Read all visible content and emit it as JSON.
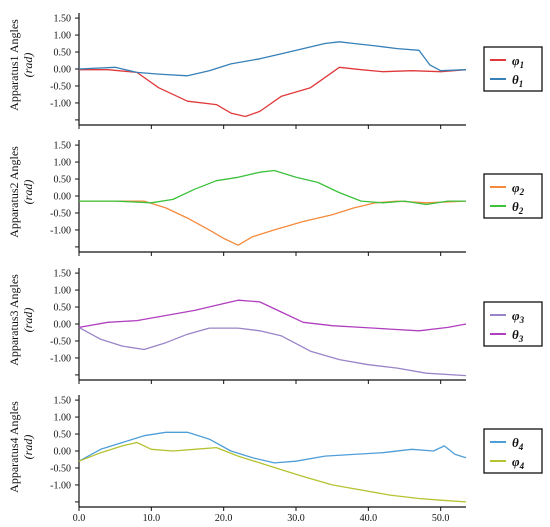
{
  "chart_data": {
    "type": "line",
    "xlim": [
      0,
      53.5
    ],
    "x_ticks": [
      "0.0",
      "10.0",
      "20.0",
      "30.0",
      "40.0",
      "50.0"
    ],
    "y_ticks": [
      "1.50",
      "1.00",
      "0.50",
      "0.00",
      "-0.50",
      "-1.00"
    ],
    "ylim": [
      -1.65,
      1.65
    ],
    "grid": false,
    "legend_placement": "right",
    "panels": [
      {
        "ylabel": "Apparatus1 Angles",
        "yunit": "(rad)",
        "series": [
          {
            "name": "φ1",
            "legend_symbol": "φ",
            "legend_sub": "1",
            "color": "#e0393b",
            "x": [
              0,
              4,
              8,
              11,
              15,
              19,
              21,
              23,
              25,
              28,
              32,
              36,
              39,
              42,
              46,
              50,
              53.5
            ],
            "y": [
              -0.02,
              -0.02,
              -0.1,
              -0.55,
              -0.95,
              -1.05,
              -1.3,
              -1.4,
              -1.25,
              -0.8,
              -0.55,
              0.05,
              -0.02,
              -0.08,
              -0.05,
              -0.08,
              -0.02
            ]
          },
          {
            "name": "θ1",
            "legend_symbol": "θ",
            "legend_sub": "1",
            "color": "#3680b8",
            "x": [
              0,
              5,
              8,
              11,
              15,
              18,
              21,
              25,
              28,
              31,
              34,
              36,
              38,
              41,
              44,
              47,
              48.5,
              50,
              53.5
            ],
            "y": [
              0.0,
              0.05,
              -0.1,
              -0.15,
              -0.2,
              -0.05,
              0.15,
              0.3,
              0.45,
              0.6,
              0.75,
              0.8,
              0.75,
              0.68,
              0.6,
              0.55,
              0.12,
              -0.05,
              -0.02
            ]
          }
        ]
      },
      {
        "ylabel": "Apparatus2 Angles",
        "yunit": "(rad)",
        "series": [
          {
            "name": "φ2",
            "legend_symbol": "φ",
            "legend_sub": "2",
            "color": "#f58a3c",
            "x": [
              0,
              5,
              9,
              12,
              15,
              18,
              20,
              22,
              24,
              27,
              31,
              35,
              38,
              41,
              44,
              48,
              53.5
            ],
            "y": [
              -0.15,
              -0.15,
              -0.15,
              -0.35,
              -0.65,
              -1.0,
              -1.25,
              -1.45,
              -1.2,
              -1.0,
              -0.75,
              -0.55,
              -0.35,
              -0.2,
              -0.15,
              -0.2,
              -0.15
            ]
          },
          {
            "name": "θ2",
            "legend_symbol": "θ",
            "legend_sub": "2",
            "color": "#3cc13c",
            "x": [
              0,
              5,
              10,
              13,
              16,
              19,
              22,
              25,
              27,
              30,
              33,
              36,
              39,
              42,
              45,
              48,
              51,
              53.5
            ],
            "y": [
              -0.15,
              -0.15,
              -0.2,
              -0.1,
              0.2,
              0.45,
              0.55,
              0.7,
              0.75,
              0.55,
              0.4,
              0.1,
              -0.15,
              -0.2,
              -0.15,
              -0.25,
              -0.15,
              -0.15
            ]
          }
        ]
      },
      {
        "ylabel": "Apparatus3 Angles",
        "yunit": "(rad)",
        "series": [
          {
            "name": "φ3",
            "legend_symbol": "φ",
            "legend_sub": "3",
            "color": "#9a84c9",
            "x": [
              0,
              3,
              6,
              9,
              12,
              15,
              18,
              22,
              25,
              28,
              32,
              36,
              40,
              44,
              48,
              53.5
            ],
            "y": [
              -0.1,
              -0.45,
              -0.65,
              -0.75,
              -0.55,
              -0.3,
              -0.12,
              -0.12,
              -0.2,
              -0.35,
              -0.8,
              -1.05,
              -1.2,
              -1.3,
              -1.45,
              -1.52
            ]
          },
          {
            "name": "θ3",
            "legend_symbol": "θ",
            "legend_sub": "3",
            "color": "#b03fbf",
            "x": [
              0,
              4,
              8,
              12,
              16,
              19,
              22,
              25,
              28,
              31,
              35,
              39,
              43,
              47,
              51,
              53.5
            ],
            "y": [
              -0.1,
              0.05,
              0.1,
              0.25,
              0.4,
              0.55,
              0.7,
              0.65,
              0.35,
              0.05,
              -0.05,
              -0.1,
              -0.15,
              -0.2,
              -0.1,
              0.0
            ]
          }
        ]
      },
      {
        "ylabel": "Apparatus4 Angles",
        "yunit": "(rad)",
        "series": [
          {
            "name": "θ4",
            "legend_symbol": "θ",
            "legend_sub": "4",
            "color": "#4f9ed8",
            "x": [
              0,
              3,
              6,
              9,
              12,
              15,
              18,
              21,
              24,
              27,
              30,
              34,
              38,
              42,
              46,
              49,
              50.5,
              52,
              53.5
            ],
            "y": [
              -0.3,
              0.05,
              0.25,
              0.45,
              0.55,
              0.55,
              0.35,
              0.0,
              -0.2,
              -0.35,
              -0.3,
              -0.15,
              -0.1,
              -0.05,
              0.05,
              0.0,
              0.15,
              -0.1,
              -0.2
            ]
          },
          {
            "name": "φ4",
            "legend_symbol": "φ",
            "legend_sub": "4",
            "color": "#b5c232",
            "x": [
              0,
              3,
              6,
              8,
              10,
              13,
              16,
              19,
              22,
              25,
              28,
              31,
              35,
              39,
              43,
              47,
              50,
              53.5
            ],
            "y": [
              -0.3,
              -0.05,
              0.15,
              0.25,
              0.05,
              0.0,
              0.05,
              0.1,
              -0.15,
              -0.35,
              -0.55,
              -0.75,
              -1.0,
              -1.15,
              -1.3,
              -1.4,
              -1.45,
              -1.5
            ]
          }
        ]
      }
    ]
  }
}
